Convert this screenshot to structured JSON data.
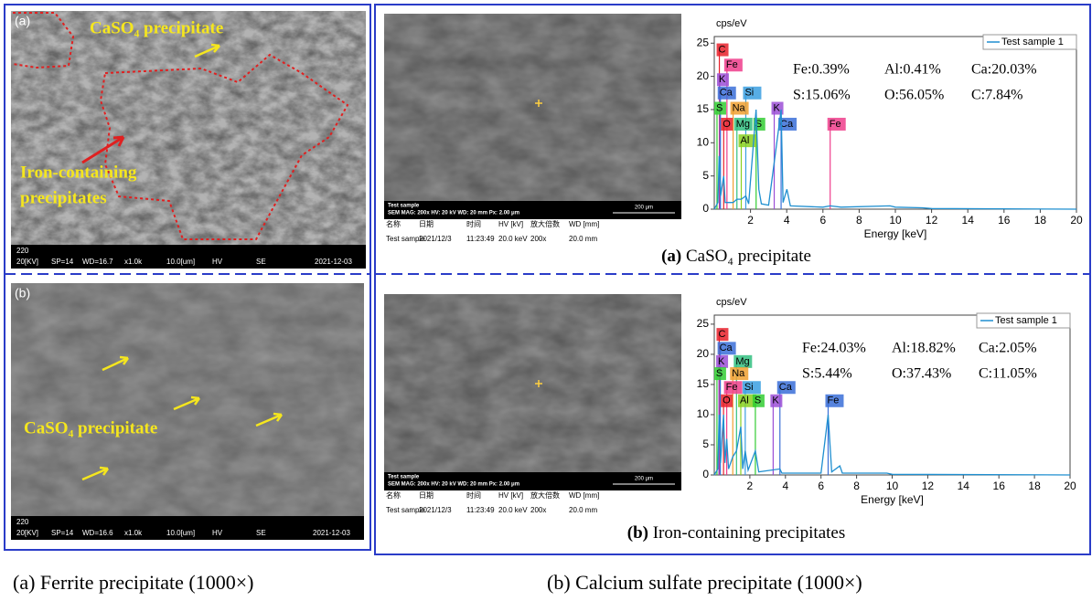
{
  "left_panel": {
    "images": [
      {
        "label": "(a)",
        "annotations": [
          "CaSO₄ precipitate",
          "Iron-containing",
          "precipitates"
        ],
        "info_bar": [
          "220",
          "20[KV]",
          "SP=14",
          "WD=16.7",
          "x1.0k",
          "10.0[um]",
          "HV",
          "SE",
          "2021-12-03"
        ]
      },
      {
        "label": "(b)",
        "annotations": [
          "CaSO₄ precipitate"
        ],
        "info_bar": [
          "220",
          "20[KV]",
          "SP=14",
          "WD=16.6",
          "x1.0k",
          "10.0[um]",
          "HV",
          "SE",
          "2021-12-03"
        ]
      }
    ]
  },
  "right_panel": {
    "sem": [
      {
        "overlay": [
          "Test sample",
          "SEM  MAG: 200x  HV: 20 kV  WD: 20 mm  Px: 2.00 μm",
          "200 μm"
        ],
        "table": {
          "headers": [
            "名称",
            "日期",
            "时间",
            "HV [kV]",
            "放大倍数",
            "WD [mm]"
          ],
          "row": [
            "Test sample",
            "2021/12/3",
            "11:23:49",
            "20.0 keV",
            "200x",
            "20.0 mm"
          ]
        }
      },
      {
        "overlay": [
          "Test sample",
          "SEM  MAG: 200x  HV: 20 kV  WD: 20 mm  Px: 2.00 μm",
          "200 μm"
        ],
        "table": {
          "headers": [
            "名称",
            "日期",
            "时间",
            "HV [kV]",
            "放大倍数",
            "WD [mm]"
          ],
          "row": [
            "Test sample",
            "2021/12/3",
            "11:23:49",
            "20.0 keV",
            "200x",
            "20.0 mm"
          ]
        }
      }
    ],
    "captions": [
      {
        "tag": "(a)",
        "text": "CaSO₄ precipitate"
      },
      {
        "tag": "(b)",
        "text": "Iron-containing precipitates"
      }
    ]
  },
  "chart_data": [
    {
      "type": "line",
      "y_label": "cps/eV",
      "x_label": "Energy [keV]",
      "xlim": [
        0,
        20
      ],
      "ylim": [
        0,
        26
      ],
      "xticks": [
        2,
        4,
        6,
        8,
        10,
        12,
        14,
        16,
        18,
        20
      ],
      "yticks": [
        0,
        5,
        10,
        15,
        20,
        25
      ],
      "series": [
        {
          "name": "Test sample 1",
          "color": "#1f8fd0",
          "x": [
            0,
            0.2,
            0.27,
            0.35,
            0.52,
            0.6,
            1.04,
            1.25,
            1.49,
            1.74,
            1.9,
            2.31,
            2.46,
            2.6,
            3.0,
            3.69,
            3.8,
            4.01,
            4.2,
            6.0,
            6.4,
            7.0,
            9.7,
            10.0,
            11.5,
            12.0,
            20
          ],
          "values": [
            0,
            1,
            8,
            2,
            5,
            1,
            1,
            1.5,
            1.5,
            2,
            0.8,
            15,
            3,
            0.8,
            0.6,
            15,
            1,
            3,
            0.5,
            0.3,
            0.5,
            0.3,
            0.5,
            0.3,
            0.2,
            0.1,
            0
          ]
        }
      ],
      "markers": [
        {
          "label": "C",
          "x": 0.28,
          "y": 24,
          "color": "#e8202a"
        },
        {
          "label": "Fe",
          "x": 0.7,
          "y": 21.7,
          "color": "#ee3d8b"
        },
        {
          "label": "K",
          "x": 0.3,
          "y": 19.5,
          "color": "#9b4fd6"
        },
        {
          "label": "Ca",
          "x": 0.34,
          "y": 17.5,
          "color": "#3a6fd8"
        },
        {
          "label": "Si",
          "x": 1.74,
          "y": 17.5,
          "color": "#3a9fe0"
        },
        {
          "label": "S",
          "x": 0.15,
          "y": 15.2,
          "color": "#33cc33"
        },
        {
          "label": "Na",
          "x": 1.04,
          "y": 15.2,
          "color": "#f0a030"
        },
        {
          "label": "K",
          "x": 3.31,
          "y": 15.2,
          "color": "#9b4fd6"
        },
        {
          "label": "O",
          "x": 0.52,
          "y": 12.8,
          "color": "#e8202a"
        },
        {
          "label": "Mg",
          "x": 1.25,
          "y": 12.8,
          "color": "#33c080"
        },
        {
          "label": "S",
          "x": 2.31,
          "y": 12.8,
          "color": "#33cc33"
        },
        {
          "label": "Ca",
          "x": 3.69,
          "y": 12.8,
          "color": "#3a6fd8"
        },
        {
          "label": "Fe",
          "x": 6.4,
          "y": 12.8,
          "color": "#ee3d8b"
        },
        {
          "label": "Al",
          "x": 1.49,
          "y": 10.3,
          "color": "#88d020"
        }
      ],
      "composition": [
        "Fe:0.39%",
        "Al:0.41%",
        "Ca:20.03%",
        "S:15.06%",
        "O:56.05%",
        "C:7.84%"
      ]
    },
    {
      "type": "line",
      "y_label": "cps/eV",
      "x_label": "Energy [keV]",
      "xlim": [
        0,
        20
      ],
      "ylim": [
        0,
        26.5
      ],
      "xticks": [
        2,
        4,
        6,
        8,
        10,
        12,
        14,
        16,
        18,
        20
      ],
      "yticks": [
        0,
        5,
        10,
        15,
        20,
        25
      ],
      "series": [
        {
          "name": "Test sample 1",
          "color": "#1f8fd0",
          "x": [
            0,
            0.2,
            0.27,
            0.35,
            0.52,
            0.6,
            0.7,
            0.8,
            1.04,
            1.25,
            1.49,
            1.6,
            1.74,
            1.9,
            2.31,
            2.5,
            3.69,
            3.8,
            6.0,
            6.4,
            6.6,
            7.06,
            7.2,
            9.7,
            10.0,
            20
          ],
          "values": [
            0,
            1,
            10,
            2,
            10,
            2,
            6,
            1,
            3,
            4,
            8,
            1,
            4,
            0.8,
            4,
            0.5,
            1,
            0.3,
            0.3,
            10,
            0.5,
            1.5,
            0.3,
            0.3,
            0.1,
            0
          ]
        }
      ],
      "markers": [
        {
          "label": "C",
          "x": 0.28,
          "y": 23.3,
          "color": "#e8202a"
        },
        {
          "label": "Ca",
          "x": 0.34,
          "y": 21,
          "color": "#3a6fd8"
        },
        {
          "label": "K",
          "x": 0.26,
          "y": 18.8,
          "color": "#9b4fd6"
        },
        {
          "label": "Mg",
          "x": 1.25,
          "y": 18.8,
          "color": "#33c080"
        },
        {
          "label": "S",
          "x": 0.15,
          "y": 16.8,
          "color": "#33cc33"
        },
        {
          "label": "Na",
          "x": 1.04,
          "y": 16.8,
          "color": "#f0a030"
        },
        {
          "label": "Fe",
          "x": 0.7,
          "y": 14.5,
          "color": "#ee3d8b"
        },
        {
          "label": "Si",
          "x": 1.74,
          "y": 14.5,
          "color": "#3a9fe0"
        },
        {
          "label": "Ca",
          "x": 3.69,
          "y": 14.5,
          "color": "#3a6fd8"
        },
        {
          "label": "O",
          "x": 0.52,
          "y": 12.3,
          "color": "#e8202a"
        },
        {
          "label": "Al",
          "x": 1.49,
          "y": 12.3,
          "color": "#88d020"
        },
        {
          "label": "S",
          "x": 2.31,
          "y": 12.3,
          "color": "#33cc33"
        },
        {
          "label": "K",
          "x": 3.31,
          "y": 12.3,
          "color": "#9b4fd6"
        },
        {
          "label": "Fe",
          "x": 6.4,
          "y": 12.3,
          "color": "#3a6fd8"
        }
      ],
      "composition": [
        "Fe:24.03%",
        "Al:18.82%",
        "Ca:2.05%",
        "S:5.44%",
        "O:37.43%",
        "C:11.05%"
      ]
    }
  ],
  "captions": [
    "(a) Ferrite precipitate (1000×)",
    "(b) Calcium sulfate precipitate (1000×)"
  ]
}
